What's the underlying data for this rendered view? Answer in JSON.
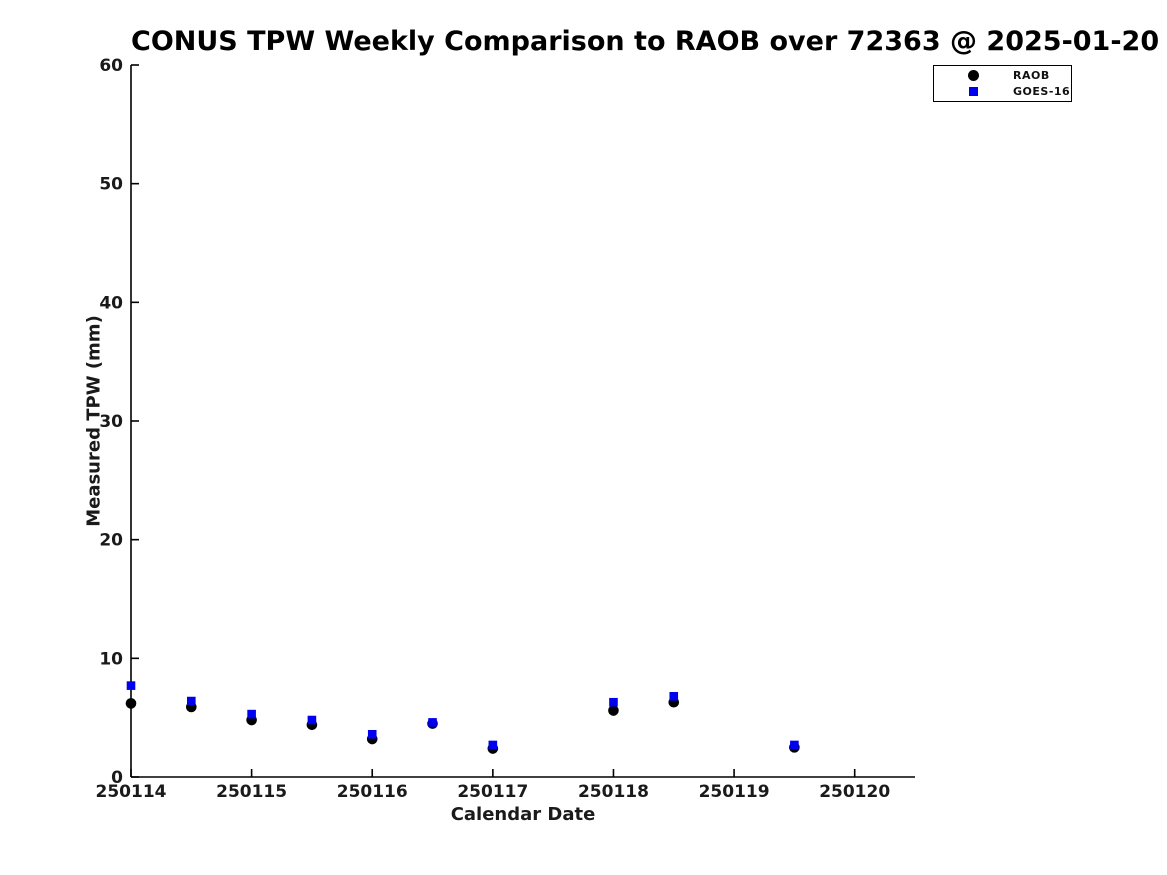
{
  "title": "CONUS TPW Weekly Comparison to RAOB over 72363 @ 2025-01-20",
  "legend": {
    "items": [
      {
        "label": "RAOB",
        "marker": "circle",
        "color": "#000000"
      },
      {
        "label": "GOES-16",
        "marker": "square",
        "color": "#0000f0"
      }
    ]
  },
  "chart_data": {
    "type": "scatter",
    "title": "CONUS TPW Weekly Comparison to RAOB over 72363 @ 2025-01-20",
    "xlabel": "Calendar Date",
    "ylabel": "Measured TPW (mm)",
    "xlim": [
      250114,
      250120.5
    ],
    "ylim": [
      0,
      60
    ],
    "xticks": [
      250114,
      250115,
      250116,
      250117,
      250118,
      250119,
      250120
    ],
    "yticks": [
      0,
      10,
      20,
      30,
      40,
      50,
      60
    ],
    "grid": false,
    "legend_position": "top-right-outside",
    "x": [
      250114,
      250114.5,
      250115,
      250115.5,
      250116,
      250116.5,
      250117,
      250118,
      250118.5,
      250119.5
    ],
    "series": [
      {
        "name": "RAOB",
        "marker": "circle",
        "color": "#000000",
        "values": [
          6.2,
          5.9,
          4.8,
          4.4,
          3.2,
          4.5,
          2.4,
          5.6,
          6.3,
          2.5
        ]
      },
      {
        "name": "GOES-16",
        "marker": "square",
        "color": "#0000f0",
        "values": [
          7.7,
          6.4,
          5.3,
          4.8,
          3.6,
          4.6,
          2.7,
          6.3,
          6.8,
          2.7
        ]
      }
    ],
    "axis_color": "#000000"
  }
}
